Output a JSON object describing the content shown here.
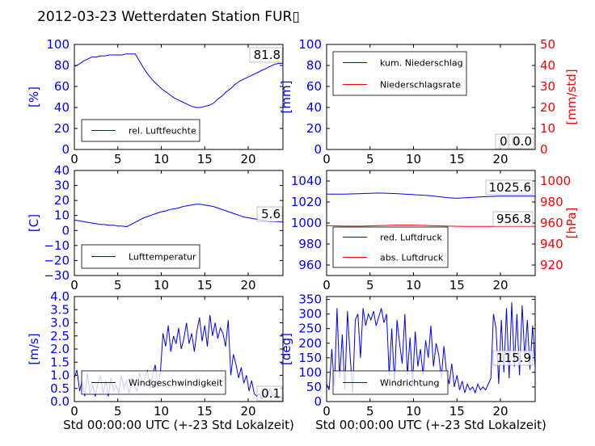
{
  "figure": {
    "title": "2012-03-23 Wetterdaten Station FUR▯",
    "x_label": "Std 00:00:00 UTC (+-23 Std Lokalzeit)"
  },
  "chart_data": [
    {
      "id": "humidity",
      "type": "line",
      "ylabel": "[%]",
      "xlim": [
        0,
        24
      ],
      "ylim": [
        0,
        100
      ],
      "xticks": [
        "0",
        "5",
        "10",
        "15",
        "20"
      ],
      "yticks": [
        "0",
        "20",
        "40",
        "60",
        "80",
        "100"
      ],
      "annotation": "81.8",
      "series": [
        {
          "name": "rel. Luftfeuchte",
          "color": "#0000ff",
          "x": [
            0,
            0.5,
            1,
            1.5,
            2,
            2.5,
            3,
            3.5,
            4,
            4.5,
            5,
            5.5,
            6,
            6.5,
            7,
            7.5,
            8,
            8.5,
            9,
            9.5,
            10,
            10.5,
            11,
            11.5,
            12,
            12.5,
            13,
            13.5,
            14,
            14.5,
            15,
            15.5,
            16,
            16.5,
            17,
            17.5,
            18,
            18.5,
            19,
            19.5,
            20,
            20.5,
            21,
            21.5,
            22,
            22.5,
            23,
            23.5,
            24
          ],
          "y": [
            79,
            81,
            84,
            86,
            88,
            88,
            89,
            89,
            90,
            90,
            90,
            90,
            91,
            91,
            91,
            84,
            77,
            71,
            66,
            62,
            58,
            55,
            52,
            49,
            47,
            45,
            43,
            41,
            40,
            40,
            41,
            42,
            44,
            48,
            51,
            55,
            58,
            62,
            65,
            67,
            69,
            71,
            73,
            75,
            77,
            79,
            81,
            82,
            82
          ]
        }
      ]
    },
    {
      "id": "precip",
      "type": "line",
      "ylabel": "[mm]",
      "ylabel_right": "[mm/std]",
      "xlim": [
        0,
        24
      ],
      "ylim": [
        0,
        100
      ],
      "ylim_right": [
        0,
        50
      ],
      "xticks": [
        "0",
        "5",
        "10",
        "15",
        "20"
      ],
      "yticks": [
        "0",
        "20",
        "40",
        "60",
        "80",
        "100"
      ],
      "yticks_right": [
        "0",
        "10",
        "20",
        "30",
        "40",
        "50"
      ],
      "annotation": "0.0",
      "annotation_right": "0.0",
      "series": [
        {
          "name": "kum. Niederschlag",
          "color": "#0000ff",
          "x": [
            0,
            24
          ],
          "y": [
            0,
            0
          ]
        },
        {
          "name": "Niederschlagsrate",
          "color": "#ff0000",
          "axis": "right",
          "x": [
            0,
            24
          ],
          "y": [
            0,
            0
          ]
        }
      ]
    },
    {
      "id": "temperature",
      "type": "line",
      "ylabel": "[C]",
      "xlim": [
        0,
        24
      ],
      "ylim": [
        -30,
        40
      ],
      "xticks": [
        "0",
        "5",
        "10",
        "15",
        "20"
      ],
      "yticks": [
        "−30",
        "−20",
        "−10",
        "0",
        "10",
        "20",
        "30",
        "40"
      ],
      "annotation": "5.6",
      "series": [
        {
          "name": "Lufttemperatur",
          "color": "#0000ff",
          "x": [
            0,
            0.5,
            1,
            1.5,
            2,
            2.5,
            3,
            3.5,
            4,
            4.5,
            5,
            5.5,
            6,
            6.5,
            7,
            7.5,
            8,
            8.5,
            9,
            9.5,
            10,
            10.5,
            11,
            11.5,
            12,
            12.5,
            13,
            13.5,
            14,
            14.5,
            15,
            15.5,
            16,
            16.5,
            17,
            17.5,
            18,
            18.5,
            19,
            19.5,
            20,
            20.5,
            21,
            21.5,
            22,
            22.5,
            23,
            23.5,
            24
          ],
          "y": [
            7,
            6.5,
            6,
            5.5,
            5,
            4.5,
            4,
            4,
            3.5,
            3.5,
            3,
            3,
            2.5,
            4,
            5.5,
            7,
            8.5,
            9.5,
            10.5,
            11.5,
            12.5,
            13,
            14,
            14.5,
            15,
            16,
            16.5,
            17,
            17.5,
            17.5,
            17,
            16.5,
            16,
            15,
            14,
            13,
            12,
            11,
            10,
            9,
            8.5,
            8,
            7.5,
            7,
            6.5,
            6,
            6,
            5.8,
            5.6
          ]
        }
      ]
    },
    {
      "id": "pressure",
      "type": "line",
      "ylabel_right": "[hPa]",
      "xlim": [
        0,
        24
      ],
      "ylim": [
        950,
        1050
      ],
      "ylim_right": [
        910,
        1010
      ],
      "xticks": [
        "0",
        "5",
        "10",
        "15",
        "20"
      ],
      "yticks": [
        "960",
        "980",
        "1000",
        "1020",
        "1040"
      ],
      "yticks_right": [
        "920",
        "940",
        "960",
        "980",
        "1000"
      ],
      "annotation": "1025.6",
      "annotation_right": "956.8",
      "series": [
        {
          "name": "red. Luftdruck",
          "color": "#0000ff",
          "x": [
            0,
            2,
            4,
            6,
            8,
            10,
            12,
            14,
            15,
            16,
            18,
            20,
            22,
            24
          ],
          "y": [
            1027.5,
            1027.5,
            1028,
            1028.5,
            1028,
            1027,
            1026,
            1024,
            1023.5,
            1024,
            1025,
            1025.5,
            1025.6,
            1025.6
          ]
        },
        {
          "name": "abs. Luftdruck",
          "color": "#ff0000",
          "axis": "right",
          "x": [
            0,
            2,
            4,
            6,
            8,
            10,
            12,
            14,
            16,
            18,
            20,
            22,
            24
          ],
          "y": [
            957.5,
            957,
            957,
            957.5,
            958,
            958,
            957.5,
            957,
            956.8,
            956.8,
            956.8,
            956.8,
            956.8
          ]
        }
      ]
    },
    {
      "id": "windspeed",
      "type": "line",
      "ylabel": "[m/s]",
      "xlim": [
        0,
        24
      ],
      "ylim": [
        0,
        4
      ],
      "xticks": [
        "0",
        "5",
        "10",
        "15",
        "20"
      ],
      "yticks": [
        "0.0",
        "0.5",
        "1.0",
        "1.5",
        "2.0",
        "2.5",
        "3.0",
        "3.5",
        "4.0"
      ],
      "annotation": "0.1",
      "series": [
        {
          "name": "Windgeschwindigkeit",
          "color": "#0000ff",
          "x": [
            0,
            0.3,
            0.6,
            0.9,
            1.2,
            1.5,
            1.8,
            2.1,
            2.4,
            2.7,
            3,
            3.3,
            3.6,
            3.9,
            4.2,
            4.5,
            4.8,
            5.1,
            5.4,
            5.7,
            6,
            6.3,
            6.6,
            6.9,
            7.2,
            7.5,
            7.8,
            8.1,
            8.4,
            8.7,
            9,
            9.3,
            9.6,
            9.9,
            10.2,
            10.5,
            10.8,
            11.1,
            11.4,
            11.7,
            12,
            12.3,
            12.6,
            12.9,
            13.2,
            13.5,
            13.8,
            14.1,
            14.4,
            14.7,
            15,
            15.3,
            15.6,
            15.9,
            16.2,
            16.5,
            16.8,
            17.1,
            17.4,
            17.7,
            18,
            18.3,
            18.6,
            18.9,
            19.2,
            19.5,
            19.8,
            20.1,
            20.4,
            20.7,
            21,
            21.3,
            21.6,
            21.9,
            22.2,
            22.5,
            22.8,
            23.1,
            23.4,
            23.7,
            24
          ],
          "y": [
            0.9,
            1.2,
            0.4,
            0.8,
            0.2,
            1.1,
            0.3,
            0.6,
            0.2,
            0.7,
            1.0,
            0.3,
            0.8,
            0.2,
            0.9,
            0.4,
            0.6,
            0.3,
            1.0,
            0.5,
            0.8,
            0.3,
            0.9,
            0.6,
            0.4,
            1.1,
            0.7,
            0.9,
            1.2,
            0.5,
            1.0,
            1.4,
            0.6,
            1.1,
            2.6,
            2.1,
            2.9,
            1.9,
            2.5,
            2.2,
            2.8,
            2.0,
            2.4,
            3.0,
            2.2,
            2.6,
            1.9,
            2.7,
            3.2,
            2.3,
            2.9,
            2.1,
            3.3,
            2.5,
            3.0,
            2.4,
            2.8,
            2.6,
            2.1,
            3.1,
            1.0,
            1.8,
            1.4,
            0.9,
            1.3,
            0.7,
            1.0,
            0.4,
            0.8,
            0.3,
            0.2,
            0.3,
            0.1,
            0.3,
            0.2,
            0.5,
            0.2,
            0.3,
            0.1,
            0.2,
            0.1
          ]
        }
      ]
    },
    {
      "id": "winddir",
      "type": "line",
      "ylabel": "[deg]",
      "xlim": [
        0,
        24
      ],
      "ylim": [
        0,
        360
      ],
      "xticks": [
        "0",
        "5",
        "10",
        "15",
        "20"
      ],
      "yticks": [
        "0",
        "50",
        "100",
        "150",
        "200",
        "250",
        "300",
        "350"
      ],
      "annotation": "115.9",
      "series": [
        {
          "name": "Windrichtung",
          "color": "#0000ff",
          "x": [
            0,
            0.3,
            0.6,
            0.9,
            1.2,
            1.5,
            1.8,
            2.1,
            2.4,
            2.7,
            3,
            3.3,
            3.6,
            3.9,
            4.2,
            4.5,
            4.8,
            5.1,
            5.4,
            5.7,
            6,
            6.3,
            6.6,
            6.9,
            7.2,
            7.5,
            7.8,
            8.1,
            8.4,
            8.7,
            9,
            9.3,
            9.6,
            9.9,
            10.2,
            10.5,
            10.8,
            11.1,
            11.4,
            11.7,
            12,
            12.3,
            12.6,
            12.9,
            13.2,
            13.5,
            13.8,
            14.1,
            14.4,
            14.7,
            15,
            15.3,
            15.6,
            15.9,
            16.2,
            16.5,
            16.8,
            17.1,
            17.4,
            17.7,
            18,
            18.3,
            18.6,
            18.9,
            19.2,
            19.5,
            19.8,
            20.1,
            20.4,
            20.7,
            21,
            21.3,
            21.6,
            21.9,
            22.2,
            22.5,
            22.8,
            23.1,
            23.4,
            23.7,
            24
          ],
          "y": [
            60,
            40,
            180,
            50,
            320,
            80,
            230,
            40,
            310,
            160,
            30,
            280,
            300,
            150,
            320,
            260,
            300,
            280,
            310,
            260,
            290,
            320,
            270,
            300,
            90,
            250,
            60,
            280,
            200,
            130,
            300,
            90,
            220,
            60,
            240,
            120,
            180,
            90,
            210,
            150,
            260,
            120,
            200,
            160,
            80,
            190,
            100,
            60,
            130,
            50,
            90,
            40,
            70,
            30,
            60,
            40,
            50,
            30,
            60,
            40,
            50,
            40,
            60,
            80,
            300,
            250,
            60,
            280,
            100,
            320,
            80,
            340,
            120,
            300,
            90,
            330,
            150,
            280,
            110,
            260,
            116
          ]
        }
      ]
    }
  ]
}
